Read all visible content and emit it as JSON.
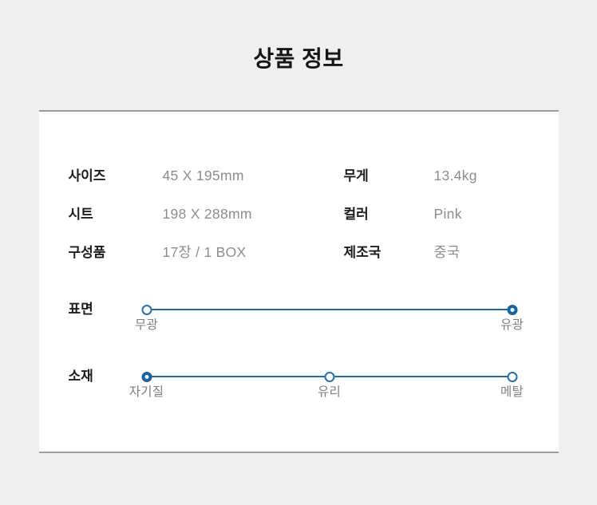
{
  "page": {
    "title": "상품 정보"
  },
  "specs": {
    "rows": [
      {
        "label": "사이즈",
        "value": "45 X 195mm"
      },
      {
        "label": "시트",
        "value": "198 X 288mm"
      },
      {
        "label": "구성품",
        "value": "17장 / 1 BOX"
      },
      {
        "label": "무게",
        "value": "13.4kg"
      },
      {
        "label": "컬러",
        "value": "Pink"
      },
      {
        "label": "제조국",
        "value": "중국"
      }
    ]
  },
  "sliders": [
    {
      "label": "표면",
      "selected_option": "유광",
      "options": [
        {
          "label": "무광",
          "position_percent": 0,
          "selected": false
        },
        {
          "label": "유광",
          "position_percent": 100,
          "selected": true
        }
      ]
    },
    {
      "label": "소재",
      "selected_option": "자기질",
      "options": [
        {
          "label": "자기질",
          "position_percent": 0,
          "selected": true
        },
        {
          "label": "유리",
          "position_percent": 50,
          "selected": false
        },
        {
          "label": "메탈",
          "position_percent": 100,
          "selected": false
        }
      ]
    }
  ],
  "colors": {
    "accent_blue": "#1e6ba8",
    "background": "#efefef",
    "card_background": "#ffffff",
    "card_border": "#9c9c9c",
    "label_text": "#1d1d1d",
    "value_text": "#8c8c8c",
    "option_text": "#7d7d7d"
  }
}
